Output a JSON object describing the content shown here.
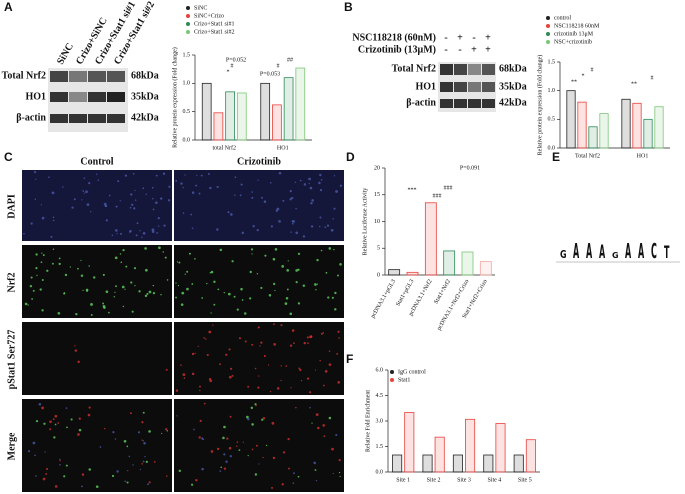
{
  "panel_labels": [
    "A",
    "B",
    "C",
    "D",
    "E",
    "F"
  ],
  "blot_a": {
    "lanes": [
      "SiNC",
      "Crizo+SiNC",
      "Crizo+Stat1 si#1",
      "Crizo+Stat1 si#2"
    ],
    "rows": [
      {
        "name": "Total Nrf2",
        "size": "68kDa"
      },
      {
        "name": "HO1",
        "size": "35kDa"
      },
      {
        "name": "β-actin",
        "size": "42kDa"
      }
    ]
  },
  "blot_b": {
    "treatments": [
      {
        "name": "NSC118218 (60nM)",
        "signs": [
          "-",
          "+",
          "-",
          "+"
        ]
      },
      {
        "name": "Crizotinib (13μM)",
        "signs": [
          "-",
          "-",
          "+",
          "+"
        ]
      }
    ],
    "rows": [
      {
        "name": "Total Nrf2",
        "size": "68kDa"
      },
      {
        "name": "HO1",
        "size": "35kDa"
      },
      {
        "name": "β-actin",
        "size": "42kDa"
      }
    ]
  },
  "microscopy": {
    "columns": [
      "Control",
      "Crizotinib"
    ],
    "rows": [
      "DAPI",
      "Nrf2",
      "pStat1 Ser727",
      "Merge"
    ]
  },
  "logo": {
    "letters": [
      "G",
      "A",
      "A",
      "A",
      "G",
      "A",
      "A",
      "C",
      "T"
    ]
  },
  "chart_data": [
    {
      "type": "bar",
      "ylabel": "Relative protein expression (Fold change)",
      "categories": [
        "total Nrf2",
        "HO1"
      ],
      "series": [
        {
          "name": "SiNC",
          "color": "#222222",
          "values": [
            1.0,
            1.0
          ]
        },
        {
          "name": "SiNC+Crizo",
          "color": "#e8413c",
          "values": [
            0.48,
            0.62
          ]
        },
        {
          "name": "Crizo+Stat1 si#1",
          "color": "#2e8b57",
          "values": [
            0.85,
            1.1
          ]
        },
        {
          "name": "Crizo+Stat1 si#2",
          "color": "#7cc576",
          "values": [
            0.83,
            1.27
          ]
        }
      ],
      "ylim": [
        0,
        1.5
      ],
      "yticks": [
        {
          "value": 0,
          "label": "0.0"
        },
        0.5,
        {
          "value": 1,
          "label": "1.0"
        },
        1.5
      ],
      "annotations": [
        "*",
        "#",
        "P=0.052",
        "P=0.053",
        "#",
        "##"
      ]
    },
    {
      "type": "bar",
      "ylabel": "Relative protein expression (Fold change)",
      "categories": [
        "Total Nrf2",
        "HO1"
      ],
      "series": [
        {
          "name": "control",
          "color": "#222222",
          "values": [
            1.0,
            0.85
          ]
        },
        {
          "name": "NSC118218 60nM",
          "color": "#e8413c",
          "values": [
            0.8,
            0.78
          ]
        },
        {
          "name": "crizotinib 13μM",
          "color": "#2e8b57",
          "values": [
            0.37,
            0.5
          ]
        },
        {
          "name": "NSC+crizotinib",
          "color": "#7cc576",
          "values": [
            0.6,
            0.72
          ]
        }
      ],
      "ylim": [
        0,
        1.5
      ],
      "yticks": [
        {
          "value": 0,
          "label": "0.0"
        },
        0.5,
        {
          "value": 1,
          "label": "1.0"
        },
        1.5
      ],
      "annotations": [
        "**",
        "*",
        "#",
        "**",
        "#"
      ]
    },
    {
      "type": "bar",
      "ylabel": "Relative Luciferase Activity",
      "categories": [
        "pcDNA3.1+pGL3",
        "Stat1+pGL3",
        "pcDNA3.1+Nrf2",
        "Stat1+Nrf2",
        "pcDNA3.1+Nrf2+Crizo",
        "Stat1+Nrf2+Crizo"
      ],
      "values": [
        1.0,
        0.5,
        13.5,
        4.5,
        4.3,
        2.5
      ],
      "colors": [
        "#222222",
        "#e8413c",
        "#e8413c",
        "#2e8b57",
        "#7cc576",
        "#f2a7a0"
      ],
      "ylim": [
        0,
        20
      ],
      "yticks": [
        0,
        5,
        10,
        15,
        20
      ],
      "annotations": [
        "***",
        "###",
        "###",
        "P=0.091"
      ]
    },
    {
      "type": "bar",
      "ylabel": "Relative Fold Enrichment",
      "categories": [
        "Site 1",
        "Site 2",
        "Site 3",
        "Site 4",
        "Site 5"
      ],
      "series": [
        {
          "name": "IgG control",
          "color": "#222222",
          "values": [
            1.0,
            1.0,
            1.0,
            1.0,
            1.0
          ]
        },
        {
          "name": "Stat1",
          "color": "#e8413c",
          "values": [
            3.5,
            2.05,
            3.1,
            2.85,
            1.9
          ]
        }
      ],
      "ylim": [
        0,
        6
      ],
      "yticks": [
        {
          "value": 0,
          "label": "0.0"
        },
        1.5,
        {
          "value": 3,
          "label": "3.0"
        },
        4.5,
        {
          "value": 6,
          "label": "6.0"
        }
      ],
      "annotations": []
    }
  ]
}
